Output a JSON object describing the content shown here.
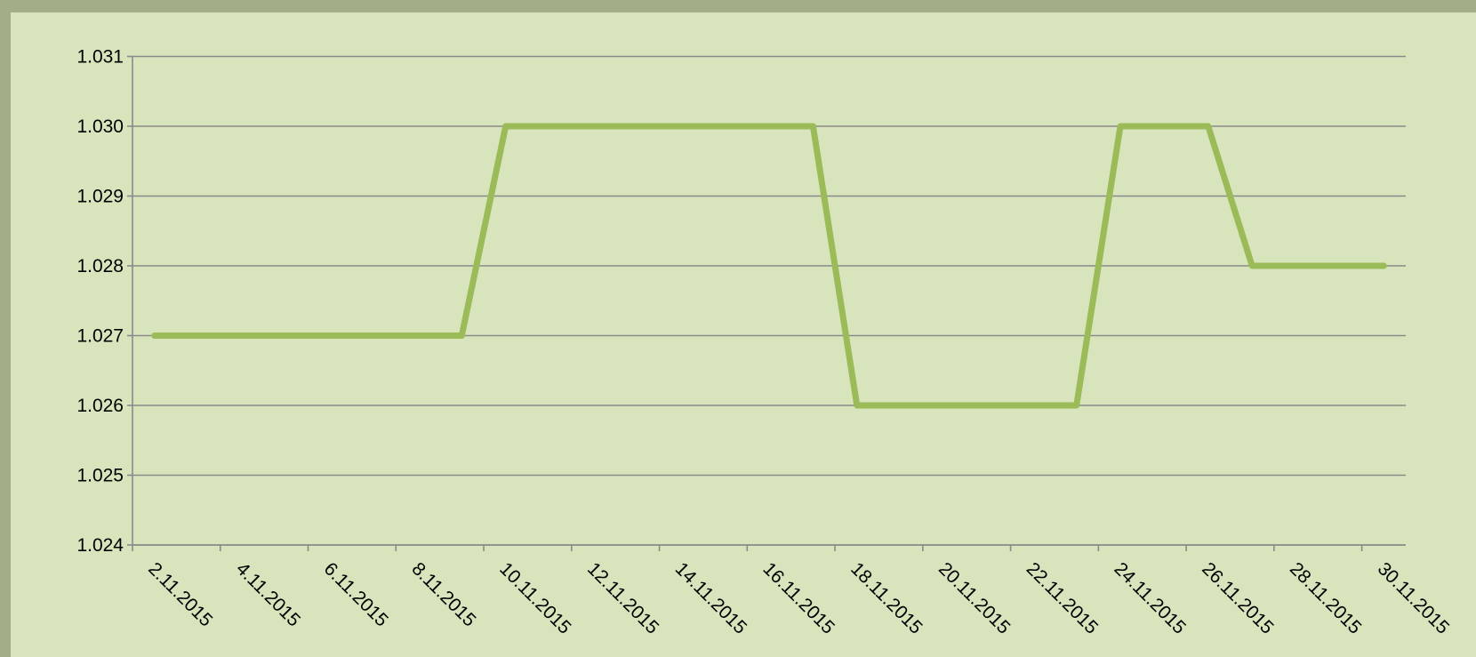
{
  "chart_data": {
    "type": "line",
    "categories": [
      "2.11.2015",
      null,
      "4.11.2015",
      null,
      "6.11.2015",
      null,
      "8.11.2015",
      null,
      "10.11.2015",
      null,
      "12.11.2015",
      null,
      "14.11.2015",
      null,
      "16.11.2015",
      null,
      "18.11.2015",
      null,
      "20.11.2015",
      null,
      "22.11.2015",
      null,
      "24.11.2015",
      null,
      "26.11.2015",
      null,
      "28.11.2015",
      null,
      "30.11.2015"
    ],
    "series": [
      {
        "color": "#9bbb59",
        "values": [
          1.027,
          1.027,
          1.027,
          1.027,
          1.027,
          1.027,
          1.027,
          1.027,
          1.03,
          1.03,
          1.03,
          1.03,
          1.03,
          1.03,
          1.03,
          1.03,
          1.026,
          1.026,
          1.026,
          1.026,
          1.026,
          1.026,
          1.03,
          1.03,
          1.03,
          1.028,
          1.028,
          1.028,
          1.028
        ]
      }
    ],
    "ylim": [
      1.024,
      1.031
    ],
    "yticks": [
      1.024,
      1.025,
      1.026,
      1.027,
      1.028,
      1.029,
      {
        "value": 1.03,
        "label": "1.030"
      },
      1.031
    ],
    "grid": true
  }
}
